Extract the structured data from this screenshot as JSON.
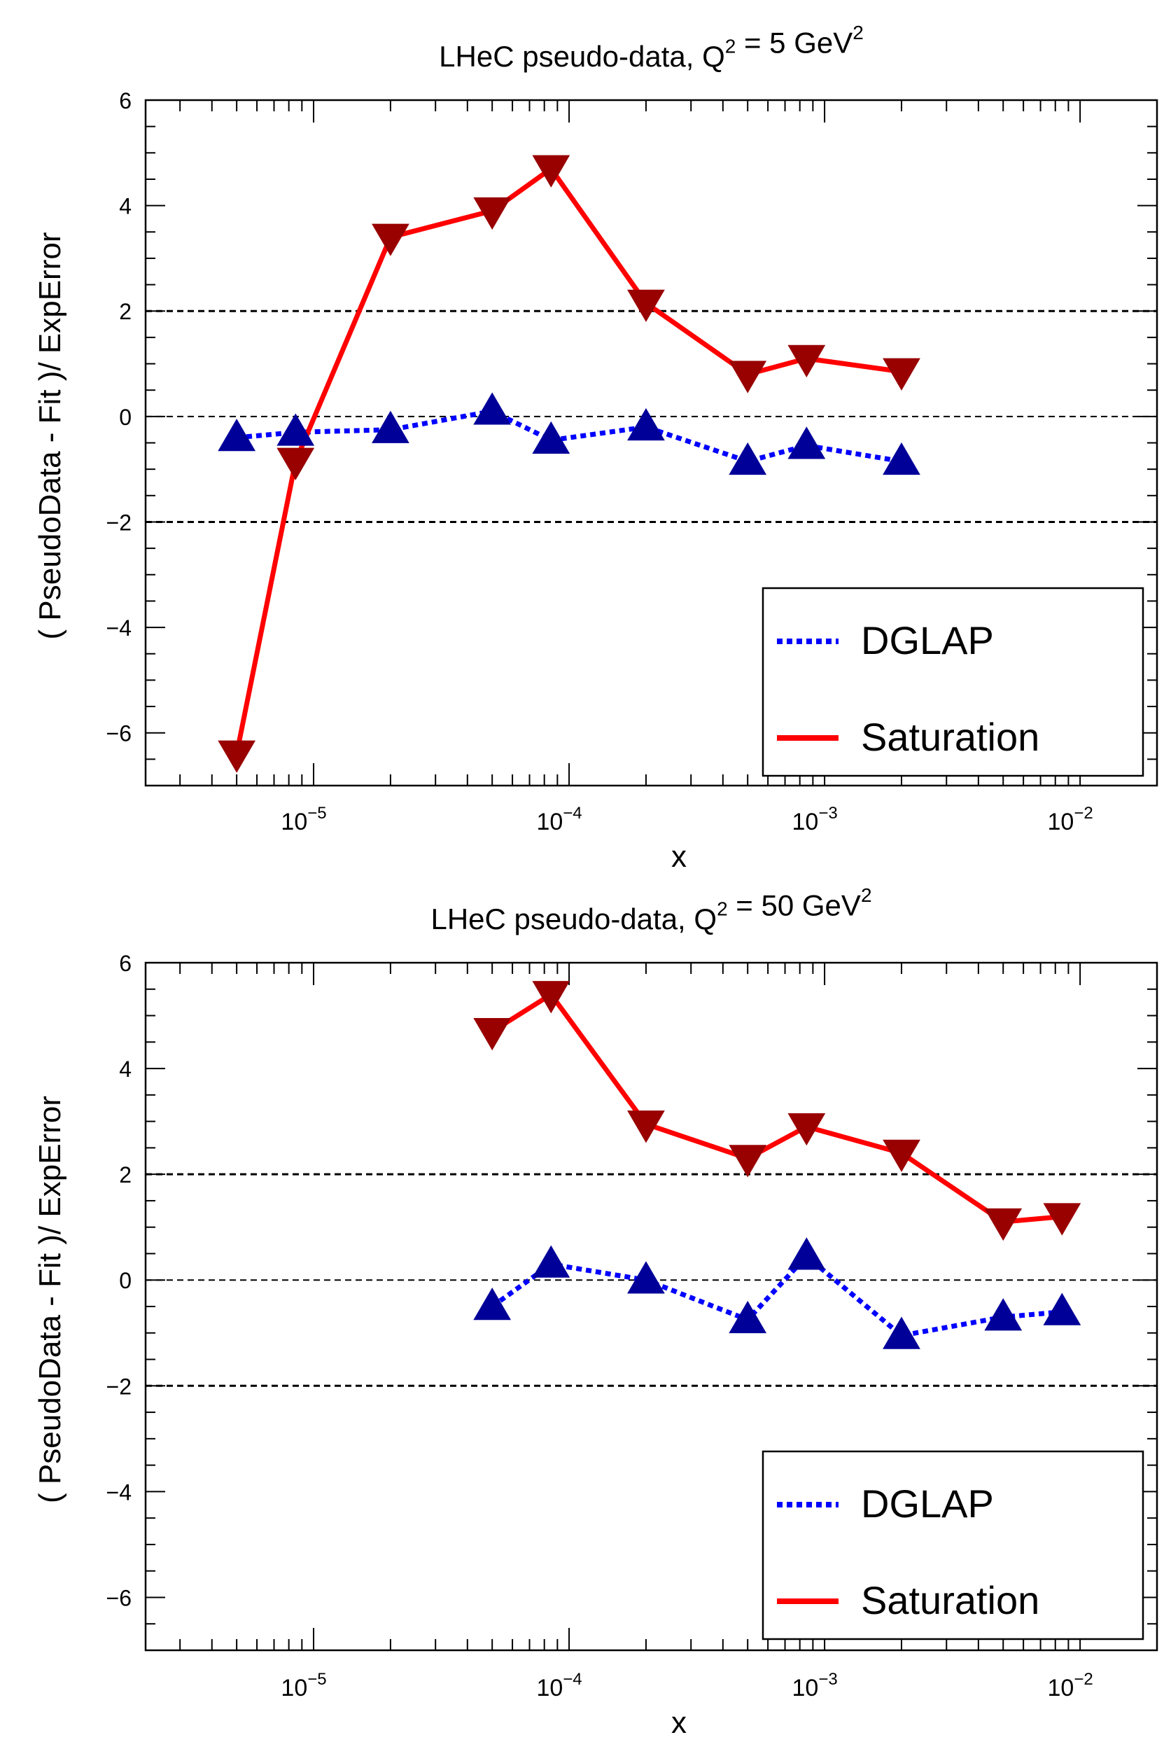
{
  "chart_data": [
    {
      "type": "line",
      "title": "LHeC pseudo-data, Q² = 5 GeV²",
      "xlabel": "x",
      "ylabel": "( PseudoData - Fit )/ ExpError",
      "xscale": "log",
      "xlim": [
        2.2e-06,
        0.02
      ],
      "ylim": [
        -7,
        6
      ],
      "yticks": [
        -6,
        -4,
        -2,
        0,
        2,
        4,
        6
      ],
      "xtick_labels": [
        {
          "value": 1e-05,
          "base": "10",
          "exp": "−5"
        },
        {
          "value": 0.0001,
          "base": "10",
          "exp": "−4"
        },
        {
          "value": 0.001,
          "base": "10",
          "exp": "−3"
        },
        {
          "value": 0.01,
          "base": "10",
          "exp": "−2"
        }
      ],
      "reference_lines": [
        2,
        0,
        -2
      ],
      "grid": false,
      "legend_position": "bottom-right",
      "series": [
        {
          "name": "DGLAP",
          "color": "#0000ff",
          "marker_color": "#000099",
          "marker": "triangle-up",
          "line_style": "dotted",
          "x": [
            5e-06,
            8.5e-06,
            2e-05,
            5e-05,
            8.5e-05,
            0.0002,
            0.0005,
            0.00085,
            0.002
          ],
          "y": [
            -0.4,
            -0.3,
            -0.25,
            0.1,
            -0.45,
            -0.2,
            -0.85,
            -0.55,
            -0.85
          ]
        },
        {
          "name": "Saturation",
          "color": "#ff0000",
          "marker_color": "#990000",
          "marker": "triangle-down",
          "line_style": "solid",
          "x": [
            5e-06,
            8.5e-06,
            2e-05,
            5e-05,
            8.5e-05,
            0.0002,
            0.0005,
            0.00085,
            0.002
          ],
          "y": [
            -6.4,
            -0.85,
            3.4,
            3.9,
            4.7,
            2.15,
            0.8,
            1.1,
            0.85
          ]
        }
      ]
    },
    {
      "type": "line",
      "title": "LHeC pseudo-data, Q² = 50 GeV²",
      "xlabel": "x",
      "ylabel": "( PseudoData - Fit )/ ExpError",
      "xscale": "log",
      "xlim": [
        2.2e-06,
        0.02
      ],
      "ylim": [
        -7,
        6
      ],
      "yticks": [
        -6,
        -4,
        -2,
        0,
        2,
        4,
        6
      ],
      "xtick_labels": [
        {
          "value": 1e-05,
          "base": "10",
          "exp": "−5"
        },
        {
          "value": 0.0001,
          "base": "10",
          "exp": "−4"
        },
        {
          "value": 0.001,
          "base": "10",
          "exp": "−3"
        },
        {
          "value": 0.01,
          "base": "10",
          "exp": "−2"
        }
      ],
      "reference_lines": [
        2,
        0,
        -2
      ],
      "grid": false,
      "legend_position": "bottom-right",
      "series": [
        {
          "name": "DGLAP",
          "color": "#0000ff",
          "marker_color": "#000099",
          "marker": "triangle-up",
          "line_style": "dotted",
          "x": [
            5e-05,
            8.5e-05,
            0.0002,
            0.0005,
            0.00085,
            0.002,
            0.005,
            0.0085
          ],
          "y": [
            -0.5,
            0.3,
            0.0,
            -0.75,
            0.45,
            -1.05,
            -0.7,
            -0.6
          ]
        },
        {
          "name": "Saturation",
          "color": "#ff0000",
          "marker_color": "#990000",
          "marker": "triangle-down",
          "line_style": "solid",
          "x": [
            5e-05,
            8.5e-05,
            0.0002,
            0.0005,
            0.00085,
            0.002,
            0.005,
            0.0085
          ],
          "y": [
            4.7,
            5.4,
            2.95,
            2.3,
            2.9,
            2.4,
            1.1,
            1.2
          ]
        }
      ]
    }
  ]
}
